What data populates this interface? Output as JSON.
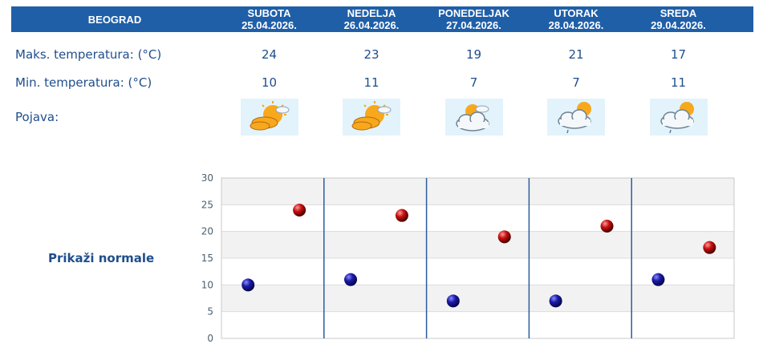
{
  "table": {
    "city": "BEOGRAD",
    "days": [
      {
        "name": "SUBOTA",
        "date": "25.04.2026.",
        "max": "24",
        "min": "10",
        "icon": "sun-cloud-icon"
      },
      {
        "name": "NEDELJA",
        "date": "26.04.2026.",
        "max": "23",
        "min": "11",
        "icon": "sun-cloud-icon"
      },
      {
        "name": "PONEDELJAK",
        "date": "27.04.2026.",
        "max": "19",
        "min": "7",
        "icon": "cloud-sun-icon"
      },
      {
        "name": "UTORAK",
        "date": "28.04.2026.",
        "max": "21",
        "min": "7",
        "icon": "cloud-sun-rain-icon"
      },
      {
        "name": "SREDA",
        "date": "29.04.2026.",
        "max": "17",
        "min": "11",
        "icon": "cloud-sun-rain-icon"
      }
    ],
    "rows": {
      "max_label": "Maks. temperatura: (°C)",
      "min_label": "Min. temperatura: (°C)",
      "phenomenon_label": "Pojava:"
    }
  },
  "normals_link": "Prikaži normale",
  "chart_data": {
    "type": "scatter",
    "title": "",
    "xlabel": "",
    "ylabel": "",
    "ylim": [
      0,
      30
    ],
    "yticks": [
      0,
      5,
      10,
      15,
      20,
      25,
      30
    ],
    "grid": "alternating horizontal bands",
    "categories": [
      "25.04.2026.",
      "26.04.2026.",
      "27.04.2026.",
      "28.04.2026.",
      "29.04.2026."
    ],
    "series": [
      {
        "role": "min",
        "values": [
          10,
          11,
          7,
          7,
          11
        ],
        "color": "#1a1aa8"
      },
      {
        "role": "max",
        "values": [
          24,
          23,
          19,
          21,
          17
        ],
        "color": "#c81010"
      }
    ]
  }
}
